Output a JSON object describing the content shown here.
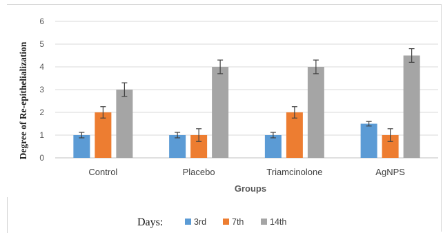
{
  "chart_data": {
    "type": "bar",
    "title": "",
    "xlabel": "Groups",
    "ylabel": "Degree of Re-epithelialization",
    "categories": [
      "Control",
      "Placebo",
      "Triamcinolone",
      "AgNPS"
    ],
    "ylim": [
      0,
      6
    ],
    "yticks": [
      "0",
      "1",
      "2",
      "3",
      "4",
      "5",
      "6"
    ],
    "grid": true,
    "legend_title": "Days:",
    "legend_position": "bottom",
    "series": [
      {
        "name": "3rd",
        "color": "#5b9bd5",
        "values": [
          1,
          1,
          1,
          1.5
        ],
        "errors": [
          0.12,
          0.12,
          0.12,
          0.1
        ]
      },
      {
        "name": "7th",
        "color": "#ed7d31",
        "values": [
          2,
          1,
          2,
          1
        ],
        "errors": [
          0.25,
          0.28,
          0.25,
          0.28
        ]
      },
      {
        "name": "14th",
        "color": "#a5a5a5",
        "values": [
          3,
          4,
          4,
          4.5
        ],
        "errors": [
          0.3,
          0.3,
          0.3,
          0.3
        ]
      }
    ]
  }
}
